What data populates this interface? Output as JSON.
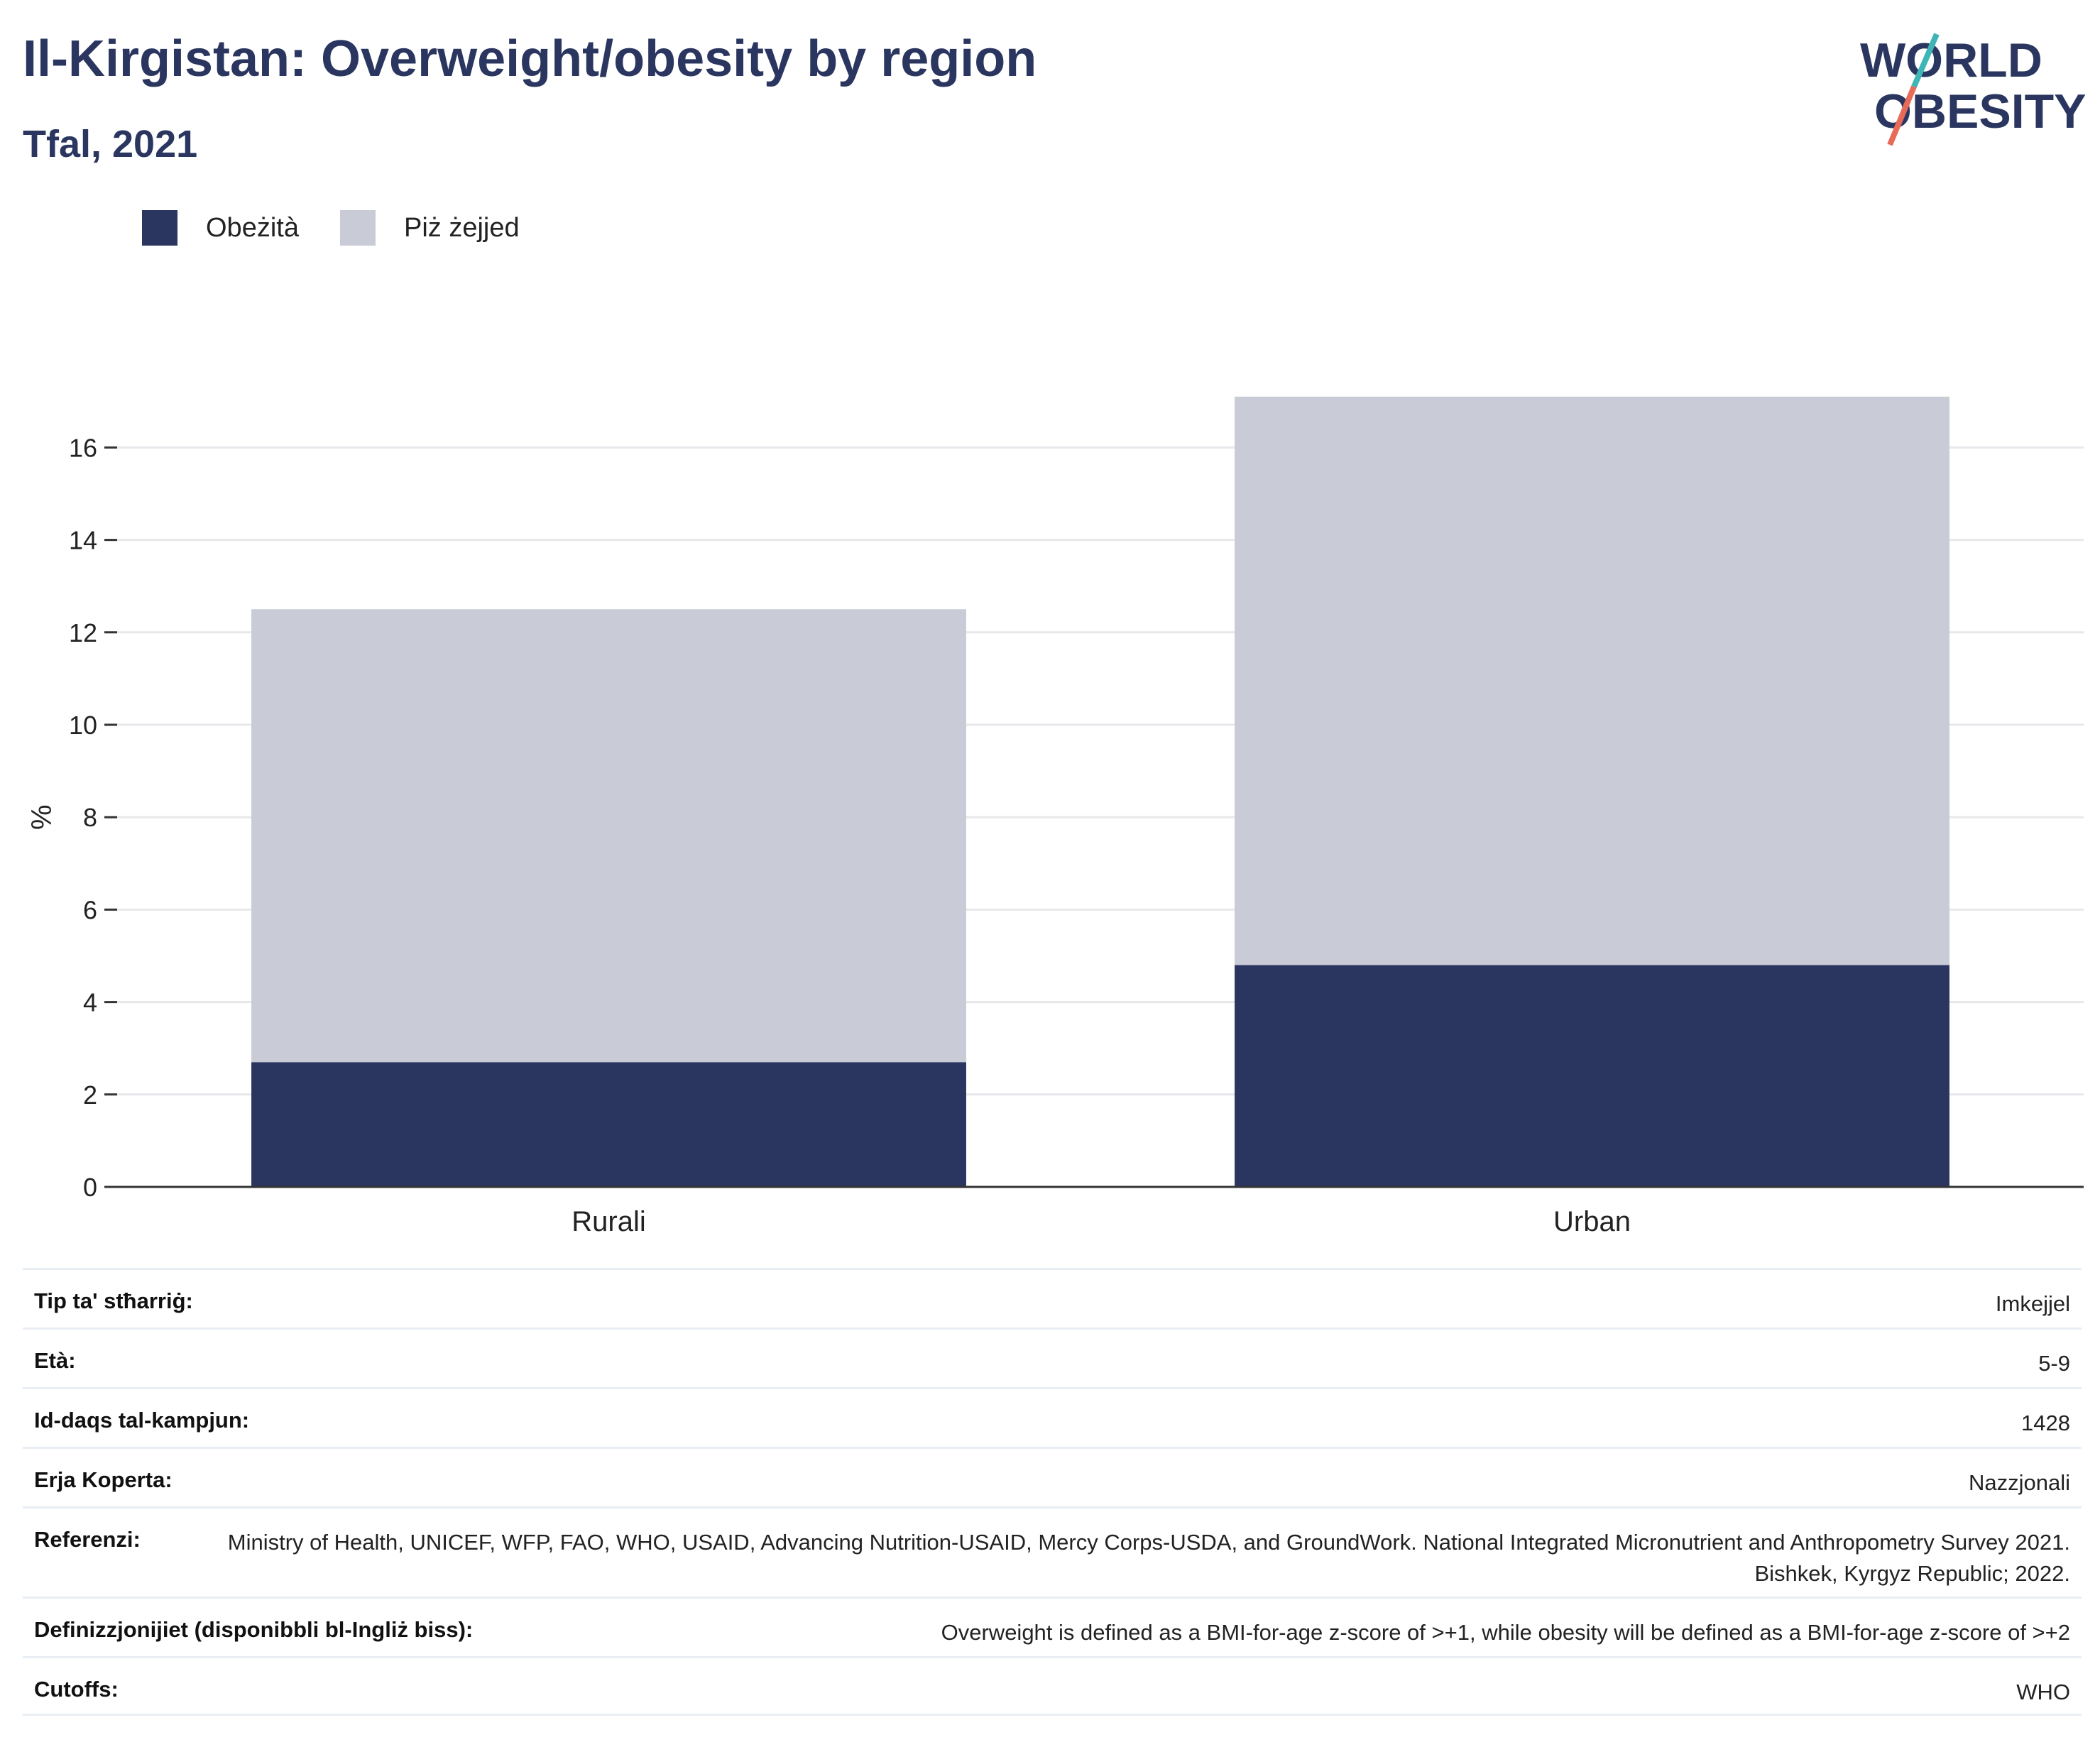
{
  "header": {
    "title": "Il-Kirgistan: Overweight/obesity by region",
    "subtitle": "Tfal, 2021"
  },
  "logo": {
    "line1": "WORLD",
    "line2": "OBESITY"
  },
  "colors": {
    "obesity": "#2a365f",
    "overweight": "#c9cbd6",
    "title": "#2a365f",
    "logo_accent_red": "#e86a58",
    "logo_accent_teal": "#3fb5b5"
  },
  "chart_data": {
    "type": "bar",
    "stacked": true,
    "categories": [
      "Rurali",
      "Urban"
    ],
    "series": [
      {
        "name": "Obeżità",
        "values": [
          2.7,
          4.8
        ]
      },
      {
        "name": "Piż żejjed",
        "values": [
          9.8,
          12.3
        ]
      }
    ],
    "ylabel": "%",
    "xlabel": "",
    "ylim": [
      0,
      18
    ],
    "yticks": [
      0,
      2,
      4,
      6,
      8,
      10,
      12,
      14,
      16
    ],
    "grid": true,
    "legend_position": "top-left"
  },
  "meta": [
    {
      "label": "Tip ta' stħarriġ:",
      "value": "Imkejjel"
    },
    {
      "label": "Età:",
      "value": "5-9"
    },
    {
      "label": "Id-daqs tal-kampjun:",
      "value": "1428"
    },
    {
      "label": "Erja Koperta:",
      "value": "Nazzjonali"
    },
    {
      "label": "Referenzi:",
      "value": "Ministry of Health, UNICEF, WFP, FAO, WHO, USAID, Advancing Nutrition-USAID, Mercy Corps-USDA, and GroundWork. National Integrated Micronutrient and Anthropometry Survey 2021. Bishkek, Kyrgyz Republic; 2022."
    },
    {
      "label": "Definizzjonijiet (disponibbli bl-Ingliż biss):",
      "value": "Overweight is defined as a BMI-for-age z-score of >+1, while obesity will be defined as a BMI-for-age z-score of >+2"
    },
    {
      "label": "Cutoffs:",
      "value": "WHO"
    }
  ]
}
